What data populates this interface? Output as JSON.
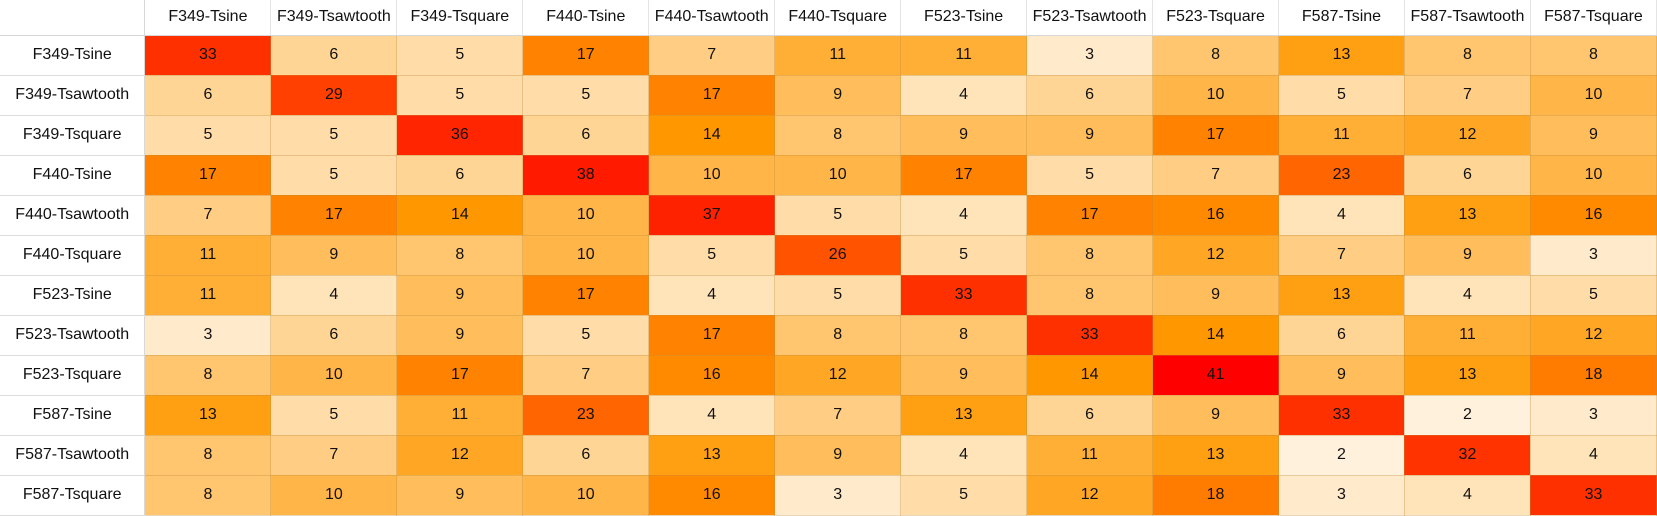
{
  "chart_data": {
    "type": "heatmap",
    "title": "",
    "xlabel": "",
    "ylabel": "",
    "x_categories": [
      "F349-Tsine",
      "F349-Tsawtooth",
      "F349-Tsquare",
      "F440-Tsine",
      "F440-Tsawtooth",
      "F440-Tsquare",
      "F523-Tsine",
      "F523-Tsawtooth",
      "F523-Tsquare",
      "F587-Tsine",
      "F587-Tsawtooth",
      "F587-Tsquare"
    ],
    "y_categories": [
      "F349-Tsine",
      "F349-Tsawtooth",
      "F349-Tsquare",
      "F440-Tsine",
      "F440-Tsawtooth",
      "F440-Tsquare",
      "F523-Tsine",
      "F523-Tsawtooth",
      "F523-Tsquare",
      "F587-Tsine",
      "F587-Tsawtooth",
      "F587-Tsquare"
    ],
    "values": [
      [
        33,
        6,
        5,
        17,
        7,
        11,
        11,
        3,
        8,
        13,
        8,
        8
      ],
      [
        6,
        29,
        5,
        5,
        17,
        9,
        4,
        6,
        10,
        5,
        7,
        10
      ],
      [
        5,
        5,
        36,
        6,
        14,
        8,
        9,
        9,
        17,
        11,
        12,
        9
      ],
      [
        17,
        5,
        6,
        38,
        10,
        10,
        17,
        5,
        7,
        23,
        6,
        10
      ],
      [
        7,
        17,
        14,
        10,
        37,
        5,
        4,
        17,
        16,
        4,
        13,
        16
      ],
      [
        11,
        9,
        8,
        10,
        5,
        26,
        5,
        8,
        12,
        7,
        9,
        3
      ],
      [
        11,
        4,
        9,
        17,
        4,
        5,
        33,
        8,
        9,
        13,
        4,
        5
      ],
      [
        3,
        6,
        9,
        5,
        17,
        8,
        8,
        33,
        14,
        6,
        11,
        12
      ],
      [
        8,
        10,
        17,
        7,
        16,
        12,
        9,
        14,
        41,
        9,
        13,
        18
      ],
      [
        13,
        5,
        11,
        23,
        4,
        7,
        13,
        6,
        9,
        33,
        2,
        3
      ],
      [
        8,
        7,
        12,
        6,
        13,
        9,
        4,
        11,
        13,
        2,
        32,
        4
      ],
      [
        8,
        10,
        9,
        10,
        16,
        3,
        5,
        12,
        18,
        3,
        4,
        33
      ]
    ],
    "color_scale": [
      {
        "value": 2,
        "color": "#fff1dc"
      },
      {
        "value": 6,
        "color": "#ffd596"
      },
      {
        "value": 10,
        "color": "#ffb548"
      },
      {
        "value": 14,
        "color": "#ff9800"
      },
      {
        "value": 18,
        "color": "#ff7c00"
      },
      {
        "value": 24,
        "color": "#ff6000"
      },
      {
        "value": 30,
        "color": "#ff3a00"
      },
      {
        "value": 37,
        "color": "#ff2200"
      },
      {
        "value": 41,
        "color": "#ff0000"
      }
    ]
  }
}
